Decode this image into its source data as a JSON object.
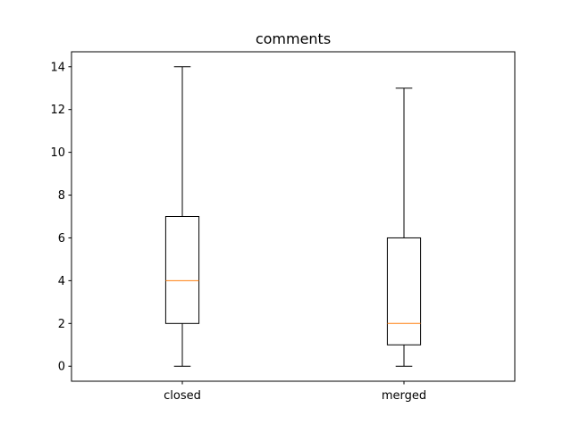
{
  "chart_data": {
    "type": "box",
    "title": "comments",
    "xlabel": "",
    "ylabel": "",
    "ylim": [
      -0.7,
      14.7
    ],
    "yticks": [
      0,
      2,
      4,
      6,
      8,
      10,
      12,
      14
    ],
    "grid": false,
    "categories": [
      "closed",
      "merged"
    ],
    "boxes": [
      {
        "category": "closed",
        "whisker_low": 0,
        "q1": 2,
        "median": 4,
        "q3": 7,
        "whisker_high": 14
      },
      {
        "category": "merged",
        "whisker_low": 0,
        "q1": 1,
        "median": 2,
        "q3": 6,
        "whisker_high": 13
      }
    ],
    "colors": {
      "box": "#000000",
      "median": "#ff7f0e"
    }
  }
}
